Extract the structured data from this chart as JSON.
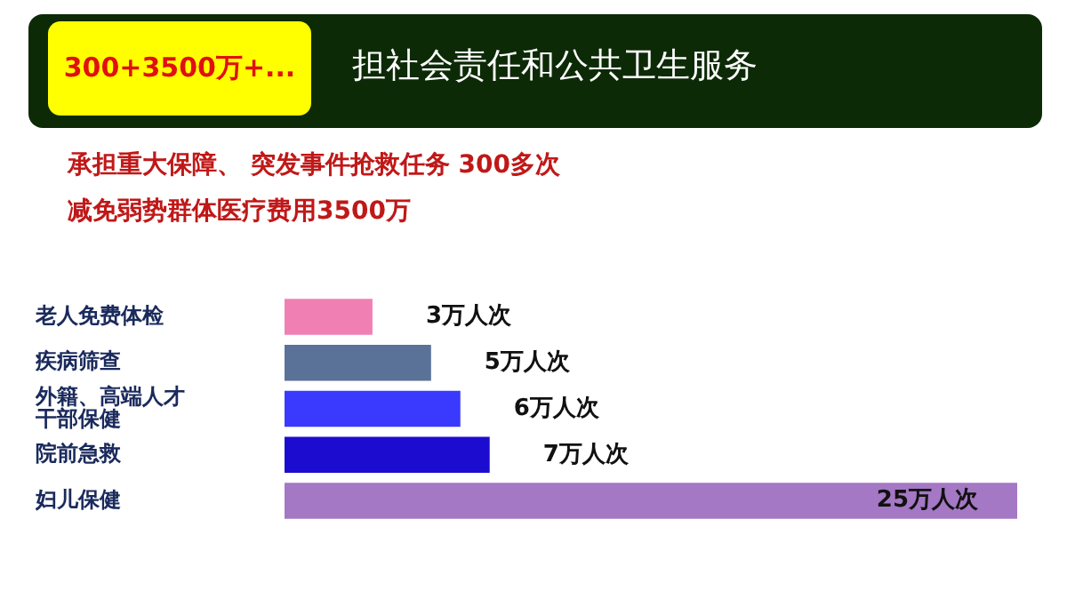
{
  "chart_data": {
    "type": "bar",
    "orientation": "horizontal",
    "title": "担社会责任和公共卫生服务",
    "subtitle": "300+3500万+...",
    "annotations": [
      "承担重大保障、 突发事件抢救任务 300多次",
      "减免弱势群体医疗费用3500万"
    ],
    "categories": [
      "老人免费体检",
      "疾病筛查",
      "外籍、高端人才干部保健",
      "院前急救",
      "妇儿保健"
    ],
    "values": [
      3,
      5,
      6,
      7,
      25
    ],
    "colors": [
      "#f080b4",
      "#5a7298",
      "#3a3aff",
      "#1c0cd0",
      "#a478c4"
    ],
    "value_labels": [
      "3万人次",
      "5万人次",
      "6万人次",
      "7万人次",
      "25万人次"
    ],
    "grid": false,
    "legend": false
  }
}
